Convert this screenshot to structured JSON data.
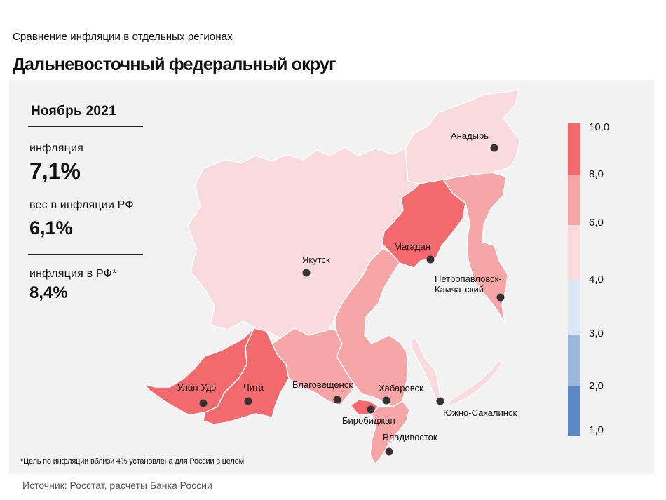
{
  "header": {
    "subtitle": "Сравнение  инфляции  в отдельных  регионах",
    "title": "Дальневосточный федеральный округ"
  },
  "summary": {
    "period": "Ноябрь 2021",
    "inflation_label": "инфляция",
    "inflation_value": "7,1%",
    "weight_label": "вес в инфляции  РФ",
    "weight_value": "6,1%",
    "rf_inflation_label": "инфляция  в РФ*",
    "rf_inflation_value": "8,4%"
  },
  "legend": {
    "labels": [
      "10,0",
      "8,0",
      "6,0",
      "4,0",
      "3,0",
      "2,0",
      "1,0"
    ],
    "colors": [
      "#f26a6e",
      "#f7a6a8",
      "#f9dadd",
      "#dce6f4",
      "#9cb8dc",
      "#5b87c5"
    ]
  },
  "cities": [
    {
      "name": "Анадырь"
    },
    {
      "name": "Магадан"
    },
    {
      "name": "Якутск"
    },
    {
      "name": "Петропавловск-"
    },
    {
      "name": "Камчатский"
    },
    {
      "name": "Улан-Удэ"
    },
    {
      "name": "Чита"
    },
    {
      "name": "Благовещенск"
    },
    {
      "name": "Хабаровск"
    },
    {
      "name": "Биробиджан"
    },
    {
      "name": "Южно-Сахалинск"
    },
    {
      "name": "Владивосток"
    }
  ],
  "footnote": "*Цель по инфляции вблизи 4% установлена для России в целом",
  "source": "Источник: Росстат, расчеты Банка России"
}
